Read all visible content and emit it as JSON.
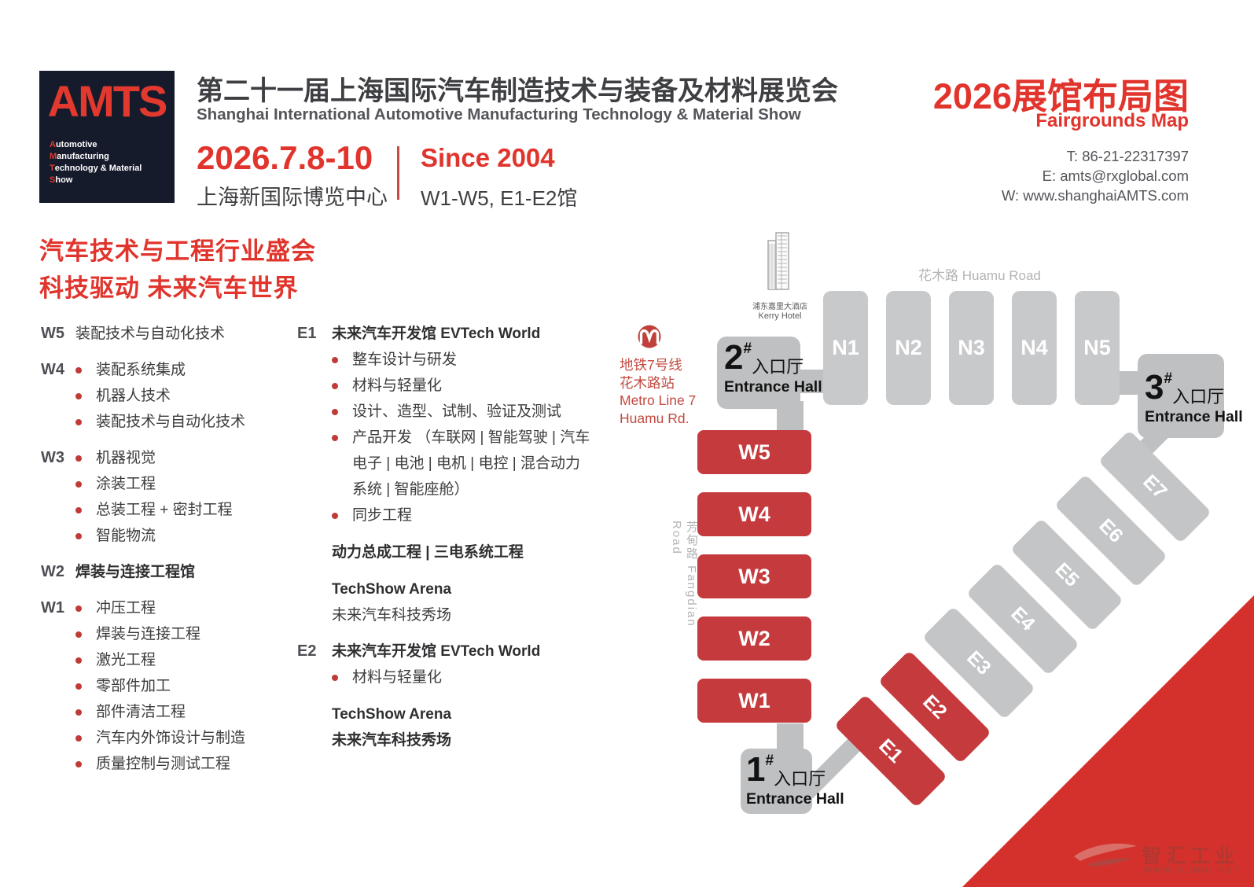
{
  "header": {
    "logo": {
      "brand": "AMTS",
      "lines": [
        {
          "i": "A",
          "rest": "utomotive"
        },
        {
          "i": "M",
          "rest": "anufacturing"
        },
        {
          "i": "T",
          "rest": "echnology & Material"
        },
        {
          "i": "S",
          "rest": "how"
        }
      ]
    },
    "title_cn": "第二十一届上海国际汽车制造技术与装备及材料展览会",
    "title_en": "Shanghai International Automotive Manufacturing Technology & Material Show",
    "date": "2026.7.8-10",
    "venue": "上海新国际博览中心",
    "since": "Since 2004",
    "halls_range": "W1-W5, E1-E2馆",
    "map_title_cn": "2026展馆布局图",
    "map_title_en": "Fairgrounds Map",
    "contact": {
      "tel": "T: 86-21-22317397",
      "email": "E: amts@rxglobal.com",
      "web": "W: www.shanghaiAMTS.com"
    }
  },
  "intro": {
    "line1": "汽车技术与工程行业盛会",
    "line2": "科技驱动 未来汽车世界"
  },
  "columns": {
    "left": [
      {
        "label": "W5",
        "title": "装配技术与自动化技术",
        "title_bold": false,
        "items": []
      },
      {
        "label": "W4",
        "items": [
          "装配系统集成",
          "机器人技术",
          "装配技术与自动化技术"
        ]
      },
      {
        "label": "W3",
        "items": [
          "机器视觉",
          "涂装工程",
          "总装工程 + 密封工程",
          "智能物流"
        ]
      },
      {
        "label": "W2",
        "title": "焊装与连接工程馆",
        "title_bold": true,
        "items": []
      },
      {
        "label": "W1",
        "items": [
          "冲压工程",
          "焊装与连接工程",
          "激光工程",
          "零部件加工",
          "部件清洁工程",
          "汽车内外饰设计与制造",
          "质量控制与测试工程"
        ]
      }
    ],
    "right": [
      {
        "label": "E1",
        "title": "未来汽车开发馆 EVTech World",
        "title_bold": true,
        "items": [
          "整车设计与研发",
          "材料与轻量化",
          "设计、造型、试制、验证及测试",
          "产品开发 （车联网 | 智能驾驶 | 汽车电子 | 电池 | 电机 | 电控 | 混合动力系统 | 智能座舱）",
          "同步工程"
        ],
        "footers": [
          {
            "text": "动力总成工程 | 三电系统工程",
            "bold": true,
            "gap": true
          },
          {
            "text": "TechShow Arena",
            "bold": true,
            "gap": true
          },
          {
            "text": "未来汽车科技秀场",
            "bold": false,
            "gap": false
          }
        ]
      },
      {
        "label": "E2",
        "title": "未来汽车开发馆 EVTech World",
        "title_bold": true,
        "items": [
          "材料与轻量化"
        ],
        "footers": [
          {
            "text": "TechShow Arena",
            "bold": true,
            "gap": true
          },
          {
            "text": "未来汽车科技秀场",
            "bold": true,
            "gap": false
          }
        ]
      }
    ]
  },
  "map": {
    "roads": {
      "huamu": "花木路  Huamu Road",
      "fangdian": "芳甸路  Fangdian Road"
    },
    "hotel": {
      "cn": "浦东嘉里大酒店",
      "en": "Kerry Hotel"
    },
    "metro": {
      "lines": [
        "地铁7号线",
        "花木路站",
        "Metro Line 7",
        "Huamu Rd."
      ]
    },
    "n_halls": [
      "N1",
      "N2",
      "N3",
      "N4",
      "N5"
    ],
    "w_halls": [
      "W5",
      "W4",
      "W3",
      "W2",
      "W1"
    ],
    "e_halls": [
      {
        "name": "E1",
        "red": true
      },
      {
        "name": "E2",
        "red": true
      },
      {
        "name": "E3",
        "red": false
      },
      {
        "name": "E4",
        "red": false
      },
      {
        "name": "E5",
        "red": false
      },
      {
        "name": "E6",
        "red": false
      },
      {
        "name": "E7",
        "red": false
      }
    ],
    "entrances": [
      {
        "num": "1",
        "hash": "#",
        "cn": "入口厅",
        "en": "Entrance Hall"
      },
      {
        "num": "2",
        "hash": "#",
        "cn": "入口厅",
        "en": "Entrance Hall"
      },
      {
        "num": "3",
        "hash": "#",
        "cn": "入口厅",
        "en": "Entrance Hall"
      }
    ],
    "watermark": {
      "cn": "智汇工业",
      "url": "WWW.ILINHI.NET"
    }
  },
  "colors": {
    "accent_red": "#e1342c",
    "hall_red": "#c53a3d",
    "hall_gray": "#c8c9cb",
    "entrance_gray": "#bfc0c2",
    "corner_red": "#d5312c",
    "text_dark": "#3e3f42",
    "text_gray": "#54555a",
    "road_gray": "#b3b4b6",
    "logo_bg": "#161b2c",
    "metro_red": "#c24a42"
  }
}
